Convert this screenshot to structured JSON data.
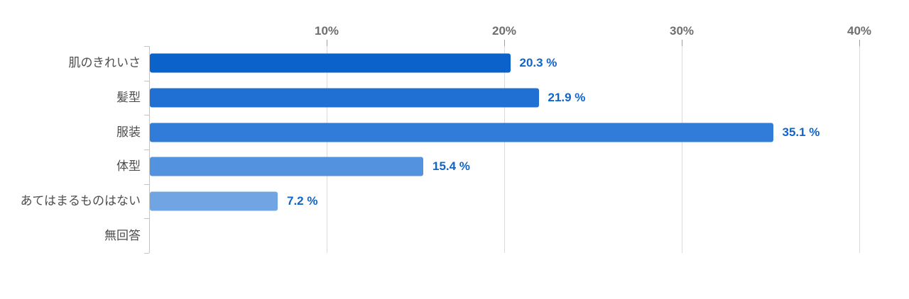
{
  "chart_data": {
    "type": "bar",
    "orientation": "horizontal",
    "title": "",
    "xlabel": "",
    "ylabel": "",
    "categories": [
      "肌のきれいさ",
      "髪型",
      "服装",
      "体型",
      "あてはまるものはない",
      "無回答"
    ],
    "values": [
      20.3,
      21.9,
      35.1,
      15.4,
      7.2,
      0
    ],
    "value_labels": [
      "20.3 %",
      "21.9 %",
      "35.1 %",
      "15.4 %",
      "7.2 %",
      ""
    ],
    "bar_colors": [
      "#0b62ca",
      "#1f70d2",
      "#307cd8",
      "#5392de",
      "#71a4e3",
      "#71a4e3"
    ],
    "x_ticks": [
      {
        "label": "10%",
        "value": 10
      },
      {
        "label": "20%",
        "value": 20
      },
      {
        "label": "30%",
        "value": 30
      },
      {
        "label": "40%",
        "value": 40
      }
    ],
    "xlim": [
      0,
      40.8
    ],
    "grid": "vertical-gridlines-on",
    "legend": "none",
    "colors": {
      "value_label": "#1164c8",
      "tick_label": "#6e6e6e",
      "category_label": "#4d4d4d",
      "axis": "#c4c4c4",
      "gridline": "#dadada",
      "background": "#ffffff"
    }
  }
}
